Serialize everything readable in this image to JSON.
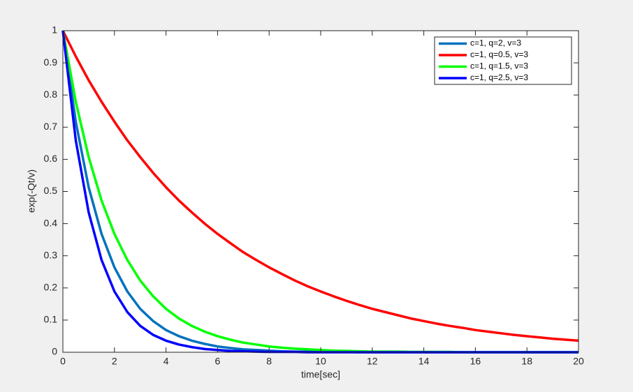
{
  "chart_data": {
    "type": "line",
    "x_label": "time[sec]",
    "y_label": "exp(-Qt/v)",
    "x": [
      0,
      0.5,
      1,
      1.5,
      2,
      2.5,
      3,
      3.5,
      4,
      4.5,
      5,
      5.5,
      6,
      6.5,
      7,
      7.5,
      8,
      8.5,
      9,
      9.5,
      10,
      10.5,
      11,
      11.5,
      12,
      12.5,
      13,
      13.5,
      14,
      14.5,
      15,
      15.5,
      16,
      16.5,
      17,
      17.5,
      18,
      18.5,
      19,
      19.5,
      20
    ],
    "series": [
      {
        "name": "c=1, q=2, v=3",
        "color": "#0072bd",
        "values": [
          1,
          0.717,
          0.513,
          0.368,
          0.264,
          0.189,
          0.135,
          0.097,
          0.069,
          0.05,
          0.036,
          0.026,
          0.018,
          0.013,
          0.009,
          0.007,
          0.005,
          0.003,
          0.002,
          0.002,
          0.001,
          0.001,
          0.001,
          0,
          0,
          0,
          0,
          0,
          0,
          0,
          0,
          0,
          0,
          0,
          0,
          0,
          0,
          0,
          0,
          0,
          0
        ]
      },
      {
        "name": "c=1, q=0.5, v=3",
        "color": "#ff0000",
        "values": [
          1,
          0.92,
          0.846,
          0.779,
          0.717,
          0.659,
          0.607,
          0.558,
          0.513,
          0.472,
          0.435,
          0.4,
          0.368,
          0.339,
          0.311,
          0.287,
          0.264,
          0.243,
          0.223,
          0.205,
          0.189,
          0.174,
          0.16,
          0.147,
          0.135,
          0.125,
          0.115,
          0.105,
          0.097,
          0.089,
          0.082,
          0.076,
          0.069,
          0.064,
          0.059,
          0.054,
          0.05,
          0.046,
          0.042,
          0.039,
          0.036
        ]
      },
      {
        "name": "c=1, q=1.5, v=3",
        "color": "#00ff00",
        "values": [
          1,
          0.779,
          0.607,
          0.472,
          0.368,
          0.287,
          0.223,
          0.174,
          0.135,
          0.105,
          0.082,
          0.064,
          0.05,
          0.039,
          0.03,
          0.024,
          0.018,
          0.014,
          0.011,
          0.009,
          0.007,
          0.005,
          0.004,
          0.003,
          0.002,
          0.002,
          0.002,
          0.001,
          0.001,
          0.001,
          0.001,
          0,
          0,
          0,
          0,
          0,
          0,
          0,
          0,
          0,
          0
        ]
      },
      {
        "name": "c=1, q=2.5, v=3",
        "color": "#0000ff",
        "values": [
          1,
          0.659,
          0.435,
          0.287,
          0.189,
          0.125,
          0.082,
          0.054,
          0.036,
          0.024,
          0.016,
          0.01,
          0.007,
          0.004,
          0.003,
          0.002,
          0.001,
          0.001,
          0.001,
          0,
          0,
          0,
          0,
          0,
          0,
          0,
          0,
          0,
          0,
          0,
          0,
          0,
          0,
          0,
          0,
          0,
          0,
          0,
          0,
          0,
          0
        ]
      }
    ],
    "xlim": [
      0,
      20
    ],
    "xticks": [
      0,
      2,
      4,
      6,
      8,
      10,
      12,
      14,
      16,
      18,
      20
    ],
    "ylim": [
      0,
      1
    ],
    "yticks": [
      0,
      0.1,
      0.2,
      0.3,
      0.4,
      0.5,
      0.6,
      0.7,
      0.8,
      0.9,
      1
    ],
    "grid": false,
    "legend": "northeast"
  }
}
